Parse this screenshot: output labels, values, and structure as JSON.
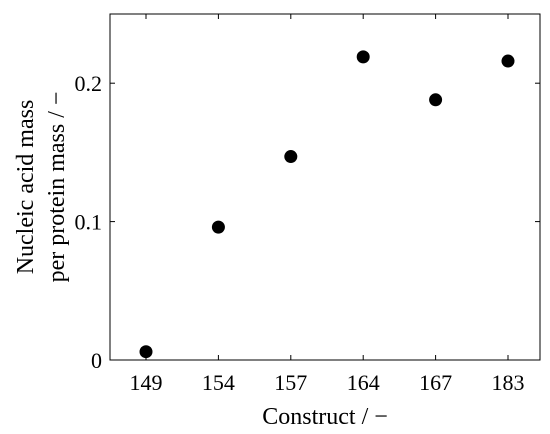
{
  "chart_data": {
    "type": "scatter",
    "title": "",
    "xlabel": "Construct / −",
    "ylabel_lines": [
      "Nucleic acid mass",
      "per protein mass / −"
    ],
    "categories": [
      "149",
      "154",
      "157",
      "164",
      "167",
      "183"
    ],
    "series": [
      {
        "values": [
          0.006,
          0.096,
          0.147,
          0.219,
          0.188,
          0.216
        ]
      }
    ],
    "ylim": [
      0,
      0.25
    ],
    "yticks": [
      0,
      0.1,
      0.2
    ],
    "ytick_labels": [
      "0",
      "0.1",
      "0.2"
    ],
    "grid": false,
    "marker_color": "#000000"
  }
}
